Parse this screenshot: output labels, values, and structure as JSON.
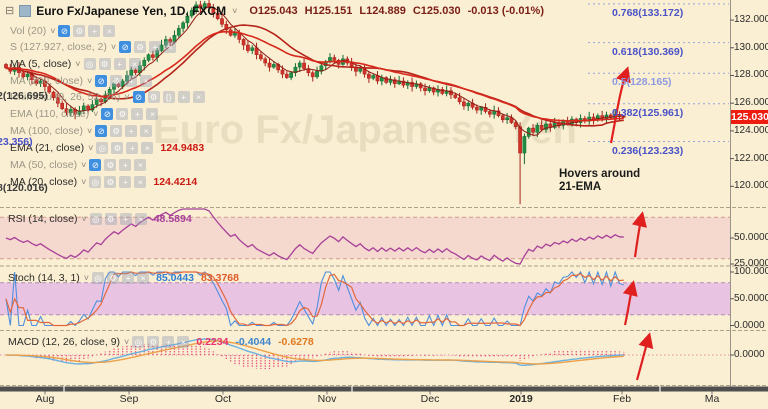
{
  "header": {
    "collapse_icon": "⊟",
    "title": "Euro Fx/Japanese Yen, 1D, FXCM",
    "caret": "˅",
    "ohlc": {
      "open": "O125.043",
      "high": "H125.151",
      "low": "L124.889",
      "close": "C125.030",
      "change": "-0.013 (-0.01%)"
    }
  },
  "watermark": "Euro Fx/Japanese Yen",
  "legend_rows": [
    {
      "label": "Vol (20)",
      "hidden": true,
      "icons": [
        "eye-off",
        "gear",
        "plus",
        "close"
      ],
      "value": ""
    },
    {
      "label": "S (127.927, close, 2)",
      "hidden": true,
      "icons": [
        "eye-off",
        "gear",
        "plus",
        "close"
      ],
      "value": ""
    },
    {
      "label": "MA (5, close)",
      "hidden": false,
      "icons": [
        "eye",
        "gear",
        "plus",
        "close"
      ],
      "value": ""
    },
    {
      "label": "MA (200, close)",
      "hidden": true,
      "icons": [
        "eye-off",
        "gear",
        "plus",
        "close"
      ],
      "value": ""
    },
    {
      "label": "Ichimoku (9, 26, 52, 26)",
      "hidden": true,
      "icons": [
        "eye-off",
        "gear",
        "braces",
        "plus",
        "close"
      ],
      "value": ""
    },
    {
      "label": "EMA (110, close)",
      "hidden": true,
      "icons": [
        "eye-off",
        "gear",
        "plus",
        "close"
      ],
      "value": ""
    },
    {
      "label": "MA (100, close)",
      "hidden": true,
      "icons": [
        "eye-off",
        "gear",
        "plus",
        "close"
      ],
      "value": ""
    },
    {
      "label": "EMA (21, close)",
      "hidden": false,
      "icons": [
        "eye",
        "gear",
        "plus",
        "close"
      ],
      "value": "124.9483"
    },
    {
      "label": "MA (50, close)",
      "hidden": true,
      "icons": [
        "eye-off",
        "gear",
        "plus",
        "close"
      ],
      "value": ""
    },
    {
      "label": "MA (20, close)",
      "hidden": false,
      "icons": [
        "eye",
        "gear",
        "plus",
        "close"
      ],
      "value": "124.4214"
    }
  ],
  "sub_legends": [
    {
      "id": "rsi",
      "label": "RSI (14, close)",
      "icons": [
        "eye",
        "gear",
        "plus",
        "close"
      ],
      "values": [
        {
          "text": "48.5894",
          "color": "#a8409a"
        }
      ]
    },
    {
      "id": "stoch",
      "label": "Stoch (14, 3, 1)",
      "icons": [
        "eye",
        "gear",
        "plus",
        "close"
      ],
      "values": [
        {
          "text": "85.0443",
          "color": "#2f7fd4"
        },
        {
          "text": "83.3768",
          "color": "#e05a2a"
        }
      ]
    },
    {
      "id": "macd",
      "label": "MACD (12, 26, close, 9)",
      "icons": [
        "eye",
        "gear",
        "plus",
        "close"
      ],
      "values": [
        {
          "text": "0.2234",
          "color": "#e8336e"
        },
        {
          "text": "-0.4044",
          "color": "#3d85cc"
        },
        {
          "text": "-0.6278",
          "color": "#e07820"
        }
      ]
    }
  ],
  "annotation": {
    "line1": "Hovers around",
    "line2": "21-EMA"
  },
  "price_axis": {
    "ticks": [
      {
        "text": "132.000",
        "p": 132
      },
      {
        "text": "130.000",
        "p": 130
      },
      {
        "text": "128.000",
        "p": 128
      },
      {
        "text": "126.000",
        "p": 126
      },
      {
        "text": "124.000",
        "p": 124
      },
      {
        "text": "122.000",
        "p": 122
      },
      {
        "text": "120.000",
        "p": 120
      }
    ],
    "last_price": "125.030"
  },
  "rsi_axis": [
    {
      "text": "50.0000",
      "v": 50
    },
    {
      "text": "25.0000",
      "v": 25
    }
  ],
  "stoch_axis": [
    {
      "text": "100.0000",
      "v": 100
    },
    {
      "text": "50.0000",
      "v": 50
    },
    {
      "text": "0.0000",
      "v": 0
    }
  ],
  "macd_axis": [
    {
      "text": "0.0000",
      "v": 0
    }
  ],
  "time_axis": [
    {
      "text": "Aug"
    },
    {
      "text": "Sep"
    },
    {
      "text": "Oct"
    },
    {
      "text": "Nov"
    },
    {
      "text": "Dec"
    },
    {
      "text": "2019",
      "bold": true
    },
    {
      "text": "Feb"
    },
    {
      "text": "Ma"
    }
  ],
  "fib_left": [
    {
      "text": "2(126.695)",
      "price": 126.695,
      "color": "#3a3a3a"
    },
    {
      "text": "23.356)",
      "price": 123.356,
      "color": "#4a52c8"
    },
    {
      "text": "8(120.016)",
      "price": 120.016,
      "color": "#3a3a3a"
    }
  ],
  "colors": {
    "up": "#1f8f44",
    "up_dark": "#176a33",
    "down": "#d23229",
    "down_dark": "#a5241d",
    "ma5": "#8f1a12",
    "ema21": "#d8281c",
    "ma20": "#b5231b",
    "rsi": "#a8409a",
    "stoch_k": "#4f8fdd",
    "stoch_d": "#e2683c",
    "macd": "#6ab0e0",
    "signal": "#eca04a",
    "hist": "#e8487c",
    "arrow": "#e01f1f",
    "fib": "#4a52c8",
    "fib_mid": "#8d99e0",
    "last_price_bg": "#ec1c0f"
  },
  "chart_data": {
    "type": "candlestick",
    "title": "Euro Fx/Japanese Yen, 1D, FXCM",
    "ohlc_current": {
      "open": 125.043,
      "high": 125.151,
      "low": 124.889,
      "close": 125.03,
      "change": -0.013,
      "change_pct": "-0.01%"
    },
    "y_axis_range": [
      118.5,
      133.45
    ],
    "x_categories_visible": [
      "Aug",
      "Sep",
      "Oct",
      "Nov",
      "Dec",
      "2019",
      "Feb",
      "Ma"
    ],
    "closes": [
      128.55,
      128.3,
      128.6,
      128.2,
      127.9,
      128.1,
      127.7,
      127.4,
      127.6,
      127.2,
      126.8,
      126.4,
      126.0,
      125.6,
      125.3,
      125.55,
      125.2,
      125.45,
      125.8,
      125.5,
      125.9,
      126.3,
      126.1,
      126.6,
      127.0,
      127.4,
      127.2,
      127.6,
      128.0,
      128.4,
      128.2,
      128.7,
      129.1,
      129.5,
      129.3,
      129.8,
      130.2,
      130.6,
      130.4,
      130.9,
      131.4,
      131.8,
      132.3,
      132.7,
      133.1,
      132.85,
      133.2,
      132.9,
      132.5,
      132.1,
      131.7,
      131.3,
      130.9,
      131.1,
      130.6,
      130.2,
      129.8,
      130.0,
      129.5,
      129.2,
      128.9,
      128.6,
      128.8,
      128.4,
      128.1,
      127.85,
      128.2,
      128.6,
      128.9,
      128.5,
      128.2,
      127.9,
      128.3,
      128.7,
      129.0,
      129.3,
      129.1,
      128.8,
      129.2,
      128.9,
      128.6,
      128.3,
      128.5,
      128.1,
      127.8,
      128.0,
      127.6,
      127.85,
      127.5,
      127.7,
      127.4,
      127.6,
      127.3,
      127.5,
      127.2,
      127.4,
      127.1,
      126.9,
      127.1,
      126.8,
      127.0,
      126.7,
      126.9,
      126.6,
      126.4,
      126.1,
      125.8,
      126.0,
      125.7,
      125.5,
      125.7,
      125.4,
      125.2,
      125.45,
      125.1,
      124.8,
      124.95,
      124.6,
      124.3,
      122.4,
      123.6,
      124.2,
      123.9,
      124.4,
      124.1,
      124.5,
      124.25,
      124.6,
      124.4,
      124.7,
      124.5,
      124.85,
      124.6,
      124.9,
      124.7,
      125.0,
      124.8,
      125.1,
      124.9,
      125.15,
      124.95,
      125.2,
      125.05,
      125.03
    ],
    "first_open": 128.8,
    "overrides": {
      "44": {
        "high": 133.35
      },
      "119": {
        "low": 118.7
      },
      "120": {
        "low": 121.6
      }
    },
    "fib_levels": [
      {
        "label": "0.768(133.172)",
        "price": 133.172,
        "mid": false
      },
      {
        "label": "0.618(130.369)",
        "price": 130.369,
        "mid": false
      },
      {
        "label": "0.5(128.165)",
        "price": 128.165,
        "mid": true
      },
      {
        "label": "0.382(125.961)",
        "price": 125.961,
        "mid": false
      },
      {
        "label": "0.236(123.233)",
        "price": 123.233,
        "mid": false
      }
    ],
    "indicators": {
      "volume": {
        "params": "Vol (20)",
        "hidden": true
      },
      "ma5": {
        "params": "MA (5, close)",
        "visible": true
      },
      "ema21": {
        "params": "EMA (21, close)",
        "value": 124.9483,
        "visible": true
      },
      "ma20": {
        "params": "MA (20, close)",
        "value": 124.4214,
        "visible": true
      },
      "rsi": {
        "params": "RSI (14, close)",
        "value": 48.5894,
        "band": [
          30,
          70
        ]
      },
      "stoch": {
        "params": "Stoch (14, 3, 1)",
        "k": 85.0443,
        "d": 83.3768,
        "band": [
          20,
          80
        ]
      },
      "macd": {
        "params": "MACD (12, 26, close, 9)",
        "hist": 0.2234,
        "macd": -0.4044,
        "signal": -0.6278
      }
    }
  }
}
